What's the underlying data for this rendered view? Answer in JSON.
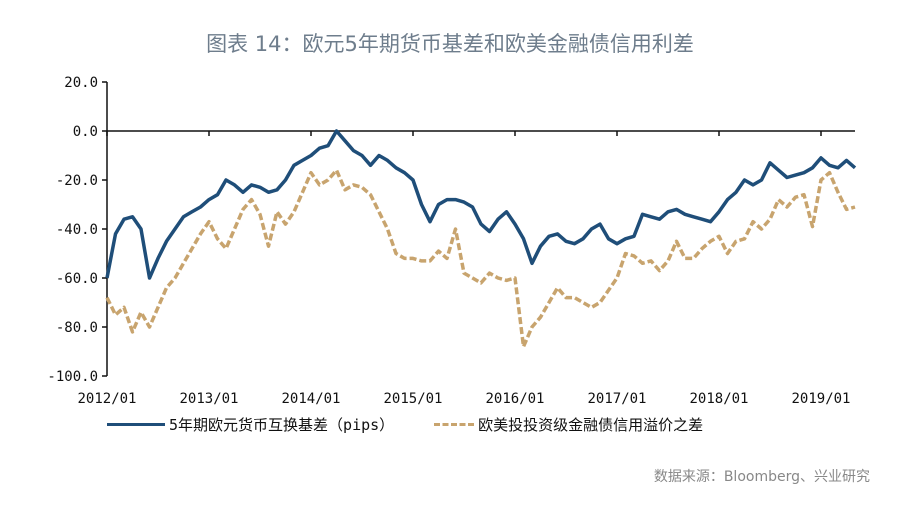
{
  "title": "图表 14：欧元5年期货币基差和欧美金融债信用利差",
  "source": "数据来源：Bloomberg、兴业研究",
  "chart_data": {
    "type": "line",
    "title": "图表 14：欧元5年期货币基差和欧美金融债信用利差",
    "xlabel": "",
    "ylabel": "",
    "ylim": [
      -100,
      20
    ],
    "yticks": [
      "20.0",
      "0.0",
      "-20.0",
      "-40.0",
      "-60.0",
      "-80.0",
      "-100.0"
    ],
    "xticks": [
      "2012/01",
      "2013/01",
      "2014/01",
      "2015/01",
      "2016/01",
      "2017/01",
      "2018/01",
      "2019/01"
    ],
    "xlim": [
      "2012-01",
      "2019-05"
    ],
    "legend_position": "bottom",
    "grid": false,
    "dates": [
      "2012-01",
      "2012-02",
      "2012-03",
      "2012-04",
      "2012-05",
      "2012-06",
      "2012-07",
      "2012-08",
      "2012-09",
      "2012-10",
      "2012-11",
      "2012-12",
      "2013-01",
      "2013-02",
      "2013-03",
      "2013-04",
      "2013-05",
      "2013-06",
      "2013-07",
      "2013-08",
      "2013-09",
      "2013-10",
      "2013-11",
      "2013-12",
      "2014-01",
      "2014-02",
      "2014-03",
      "2014-04",
      "2014-05",
      "2014-06",
      "2014-07",
      "2014-08",
      "2014-09",
      "2014-10",
      "2014-11",
      "2014-12",
      "2015-01",
      "2015-02",
      "2015-03",
      "2015-04",
      "2015-05",
      "2015-06",
      "2015-07",
      "2015-08",
      "2015-09",
      "2015-10",
      "2015-11",
      "2015-12",
      "2016-01",
      "2016-02",
      "2016-03",
      "2016-04",
      "2016-05",
      "2016-06",
      "2016-07",
      "2016-08",
      "2016-09",
      "2016-10",
      "2016-11",
      "2016-12",
      "2017-01",
      "2017-02",
      "2017-03",
      "2017-04",
      "2017-05",
      "2017-06",
      "2017-07",
      "2017-08",
      "2017-09",
      "2017-10",
      "2017-11",
      "2017-12",
      "2018-01",
      "2018-02",
      "2018-03",
      "2018-04",
      "2018-05",
      "2018-06",
      "2018-07",
      "2018-08",
      "2018-09",
      "2018-10",
      "2018-11",
      "2018-12",
      "2019-01",
      "2019-02",
      "2019-03",
      "2019-04",
      "2019-05"
    ],
    "series": [
      {
        "name": "5年期欧元货币互换基差（pips）",
        "color": "#1f4e79",
        "style": "solid",
        "values": [
          -60,
          -42,
          -36,
          -35,
          -40,
          -60,
          -52,
          -45,
          -40,
          -35,
          -33,
          -31,
          -28,
          -26,
          -20,
          -22,
          -25,
          -22,
          -23,
          -25,
          -24,
          -20,
          -14,
          -12,
          -10,
          -7,
          -6,
          0,
          -4,
          -8,
          -10,
          -14,
          -10,
          -12,
          -15,
          -17,
          -20,
          -30,
          -37,
          -30,
          -28,
          -28,
          -29,
          -31,
          -38,
          -41,
          -36,
          -33,
          -38,
          -44,
          -54,
          -47,
          -43,
          -42,
          -45,
          -46,
          -44,
          -40,
          -38,
          -44,
          -46,
          -44,
          -43,
          -34,
          -35,
          -36,
          -33,
          -32,
          -34,
          -35,
          -36,
          -37,
          -33,
          -28,
          -25,
          -20,
          -22,
          -20,
          -13,
          -16,
          -19,
          -18,
          -17,
          -15,
          -11,
          -14,
          -15,
          -12,
          -15
        ]
      },
      {
        "name": "欧美投投资级金融债信用溢价之差",
        "color": "#c8a46e",
        "style": "dashed",
        "values": [
          -68,
          -75,
          -72,
          -82,
          -74,
          -80,
          -72,
          -64,
          -60,
          -54,
          -48,
          -42,
          -37,
          -44,
          -48,
          -40,
          -32,
          -28,
          -34,
          -47,
          -33,
          -38,
          -33,
          -25,
          -17,
          -22,
          -20,
          -16,
          -24,
          -22,
          -23,
          -26,
          -33,
          -40,
          -50,
          -52,
          -52,
          -53,
          -53,
          -49,
          -52,
          -40,
          -58,
          -60,
          -62,
          -58,
          -60,
          -61,
          -60,
          -88,
          -80,
          -76,
          -70,
          -64,
          -68,
          -68,
          -70,
          -72,
          -70,
          -65,
          -60,
          -50,
          -51,
          -54,
          -53,
          -57,
          -53,
          -45,
          -52,
          -52,
          -48,
          -45,
          -43,
          -50,
          -45,
          -44,
          -37,
          -40,
          -36,
          -28,
          -31,
          -27,
          -26,
          -39,
          -20,
          -17,
          -25,
          -32,
          -31
        ]
      }
    ]
  }
}
